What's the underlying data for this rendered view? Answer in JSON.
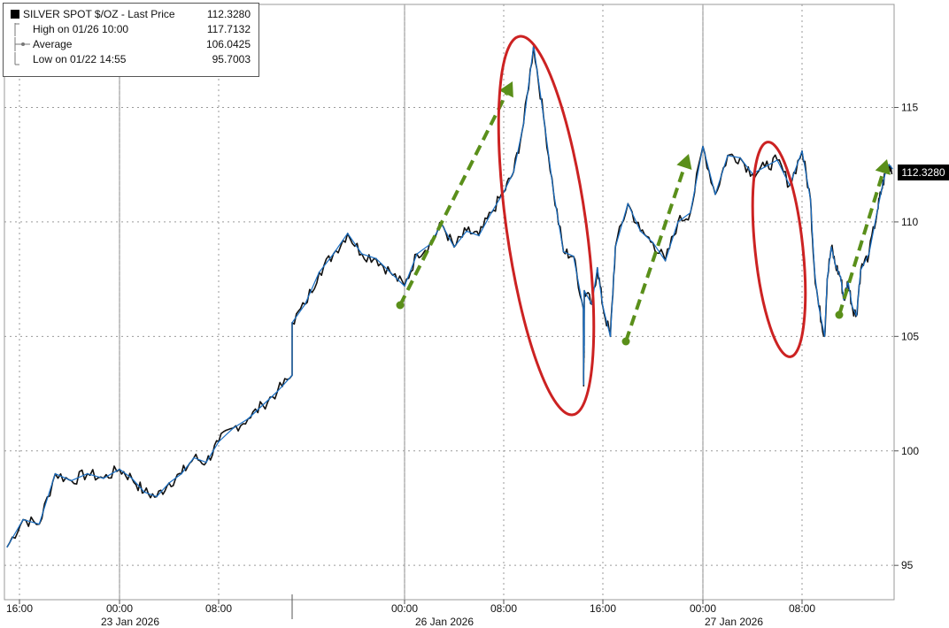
{
  "chart_data": {
    "type": "line",
    "title": "",
    "xlabel": "",
    "ylabel": "",
    "ylim": [
      93.5,
      119.5
    ],
    "y_ticks": [
      95,
      100,
      105,
      110,
      115
    ],
    "y_tick_labels": [
      "95",
      "100",
      "105",
      "110",
      "115"
    ],
    "grid": true,
    "legend_position": "top-left",
    "x_ticks": [
      "16:00",
      "00:00",
      "08:00",
      "00:00",
      "08:00",
      "16:00",
      "00:00",
      "08:00"
    ],
    "x_dates": [
      "23 Jan 2026",
      "26 Jan 2026",
      "27 Jan 2026"
    ],
    "series": [
      {
        "name": "SILVER SPOT $/OZ - Last Price",
        "color": "#1a6fc4",
        "points": [
          [
            0.0,
            95.8
          ],
          [
            1.0,
            97.0
          ],
          [
            2.0,
            96.8
          ],
          [
            3.0,
            99.0
          ],
          [
            4.0,
            98.7
          ],
          [
            5.0,
            99.0
          ],
          [
            6.0,
            98.8
          ],
          [
            7.0,
            99.2
          ],
          [
            8.0,
            98.8
          ],
          [
            9.0,
            98.2
          ],
          [
            10.0,
            98.0
          ],
          [
            11.0,
            98.6
          ],
          [
            12.0,
            99.0
          ],
          [
            13.0,
            99.7
          ],
          [
            14.0,
            99.5
          ],
          [
            15.0,
            100.4
          ],
          [
            16.0,
            101.0
          ],
          [
            17.0,
            101.4
          ],
          [
            18.0,
            102.0
          ],
          [
            19.0,
            102.6
          ],
          [
            20.0,
            103.3
          ],
          [
            20.1,
            105.6
          ],
          [
            21.0,
            106.4
          ],
          [
            22.0,
            107.8
          ],
          [
            23.0,
            108.6
          ],
          [
            24.0,
            109.5
          ],
          [
            25.0,
            108.6
          ],
          [
            26.0,
            108.4
          ],
          [
            27.0,
            107.8
          ],
          [
            28.0,
            107.2
          ],
          [
            29.0,
            108.6
          ],
          [
            30.0,
            109.0
          ],
          [
            31.0,
            109.9
          ],
          [
            32.0,
            108.9
          ],
          [
            33.0,
            109.6
          ],
          [
            34.0,
            109.4
          ],
          [
            35.0,
            110.4
          ],
          [
            36.0,
            111.3
          ],
          [
            37.0,
            112.2
          ],
          [
            38.0,
            114.3
          ],
          [
            39.0,
            117.7
          ],
          [
            40.0,
            114.6
          ],
          [
            41.0,
            111.3
          ],
          [
            42.0,
            108.7
          ],
          [
            43.0,
            108.5
          ],
          [
            44.0,
            106.2
          ],
          [
            44.6,
            102.9
          ],
          [
            45.0,
            104.0
          ],
          [
            45.6,
            104.4
          ],
          [
            46.0,
            104.6
          ],
          [
            46.3,
            107.0
          ],
          [
            47.0,
            106.4
          ],
          [
            47.5,
            108.0
          ],
          [
            48.0,
            106.3
          ],
          [
            48.6,
            105.0
          ],
          [
            49.0,
            108.9
          ],
          [
            50.0,
            110.8
          ],
          [
            51.0,
            109.6
          ],
          [
            52.0,
            109.1
          ],
          [
            53.0,
            108.3
          ],
          [
            54.0,
            110.0
          ],
          [
            55.0,
            110.4
          ],
          [
            56.0,
            113.3
          ],
          [
            57.0,
            111.2
          ],
          [
            58.0,
            112.9
          ],
          [
            59.0,
            112.8
          ],
          [
            60.0,
            112.1
          ],
          [
            61.0,
            112.4
          ],
          [
            62.0,
            112.7
          ],
          [
            63.0,
            111.6
          ],
          [
            64.0,
            113.1
          ],
          [
            65.0,
            111.0
          ],
          [
            65.5,
            107.8
          ],
          [
            66.0,
            106.3
          ],
          [
            66.7,
            105.0
          ],
          [
            67.0,
            107.5
          ],
          [
            67.5,
            108.9
          ],
          [
            68.0,
            108.1
          ],
          [
            68.6,
            107.6
          ],
          [
            69.0,
            106.6
          ],
          [
            69.5,
            107.4
          ],
          [
            70.0,
            106.3
          ],
          [
            70.5,
            105.9
          ],
          [
            71.0,
            107.9
          ],
          [
            72.0,
            108.6
          ],
          [
            73.0,
            110.5
          ],
          [
            73.5,
            111.4
          ],
          [
            74.0,
            112.2
          ],
          [
            74.4,
            112.5
          ],
          [
            74.8,
            112.328
          ]
        ],
        "last_price": "112.3280"
      }
    ],
    "stats": [
      {
        "label": "High on 01/26 10:00",
        "value": "117.7132"
      },
      {
        "label": "Average",
        "value": "106.0425"
      },
      {
        "label": "Low on 01/22 14:55",
        "value": "95.7003"
      }
    ],
    "annotations": {
      "trend_arrows": 4,
      "arrow_color": "#5a8f1a",
      "highlight_ellipses": 2,
      "ellipse_color": "#cc2222"
    }
  }
}
